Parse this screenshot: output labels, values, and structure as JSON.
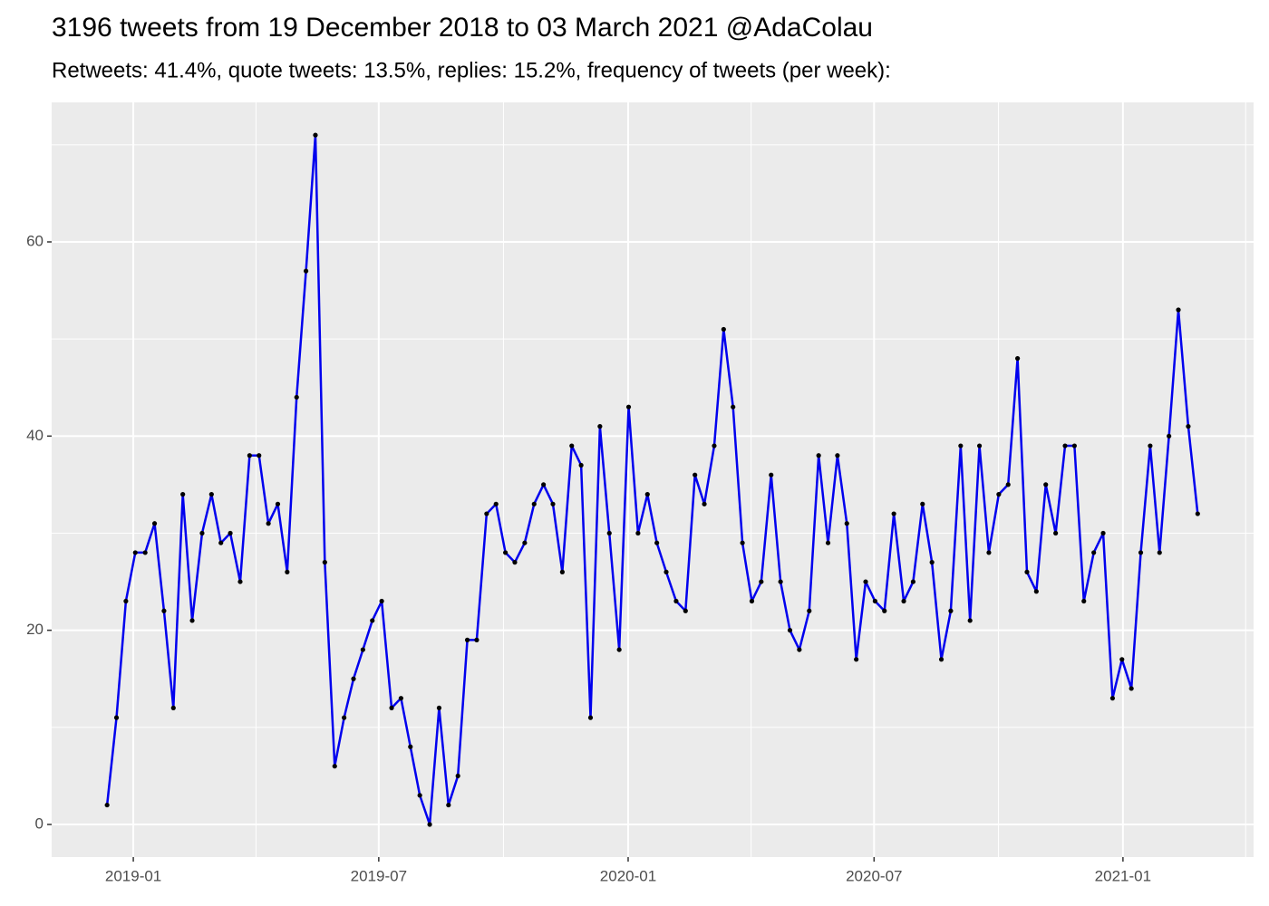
{
  "chart_data": {
    "type": "line",
    "title": "3196 tweets from 19 December 2018 to 03 March 2021 @AdaColau",
    "subtitle": "Retweets: 41.4%, quote tweets: 13.5%, replies: 15.2%, frequency of tweets (per week):",
    "x": [
      2018.947,
      2018.966,
      2018.985,
      2019.004,
      2019.024,
      2019.043,
      2019.062,
      2019.081,
      2019.1,
      2019.119,
      2019.139,
      2019.158,
      2019.177,
      2019.196,
      2019.216,
      2019.235,
      2019.254,
      2019.273,
      2019.292,
      2019.311,
      2019.33,
      2019.349,
      2019.368,
      2019.387,
      2019.407,
      2019.426,
      2019.445,
      2019.464,
      2019.483,
      2019.502,
      2019.522,
      2019.541,
      2019.56,
      2019.579,
      2019.599,
      2019.618,
      2019.637,
      2019.656,
      2019.675,
      2019.694,
      2019.714,
      2019.733,
      2019.752,
      2019.771,
      2019.791,
      2019.81,
      2019.829,
      2019.848,
      2019.867,
      2019.886,
      2019.905,
      2019.924,
      2019.943,
      2019.962,
      2019.982,
      2020.001,
      2020.02,
      2020.039,
      2020.058,
      2020.077,
      2020.097,
      2020.116,
      2020.135,
      2020.154,
      2020.174,
      2020.193,
      2020.212,
      2020.231,
      2020.25,
      2020.269,
      2020.289,
      2020.308,
      2020.327,
      2020.346,
      2020.366,
      2020.385,
      2020.404,
      2020.423,
      2020.442,
      2020.461,
      2020.48,
      2020.499,
      2020.518,
      2020.537,
      2020.557,
      2020.576,
      2020.595,
      2020.614,
      2020.633,
      2020.652,
      2020.672,
      2020.691,
      2020.71,
      2020.729,
      2020.749,
      2020.768,
      2020.787,
      2020.806,
      2020.825,
      2020.844,
      2020.864,
      2020.883,
      2020.902,
      2020.921,
      2020.941,
      2020.96,
      2020.979,
      2020.998,
      2021.017,
      2021.036,
      2021.055,
      2021.074,
      2021.093,
      2021.112,
      2021.132,
      2021.151
    ],
    "series": [
      {
        "color": "#0000ee",
        "point_color": "#000000",
        "values": [
          2,
          11,
          23,
          28,
          28,
          31,
          22,
          12,
          34,
          21,
          30,
          34,
          29,
          30,
          25,
          38,
          38,
          31,
          33,
          26,
          44,
          57,
          71,
          27,
          6,
          11,
          15,
          18,
          21,
          23,
          12,
          13,
          8,
          3,
          0,
          12,
          2,
          5,
          19,
          19,
          32,
          33,
          28,
          27,
          29,
          33,
          35,
          33,
          26,
          39,
          37,
          11,
          41,
          30,
          18,
          43,
          30,
          34,
          29,
          26,
          23,
          22,
          36,
          33,
          39,
          51,
          43,
          29,
          23,
          25,
          36,
          25,
          20,
          18,
          22,
          38,
          29,
          38,
          31,
          17,
          25,
          23,
          22,
          32,
          23,
          25,
          33,
          27,
          17,
          22,
          39,
          21,
          39,
          28,
          34,
          35,
          48,
          26,
          24,
          35,
          30,
          39,
          39,
          23,
          28,
          30,
          13,
          17,
          14,
          28,
          39,
          28,
          40,
          53,
          41,
          32
        ]
      }
    ],
    "xlim": [
      2018.835,
      2021.264
    ],
    "xticks": [
      {
        "value": 2019.0,
        "label": "2019-01"
      },
      {
        "value": 2019.496,
        "label": "2019-07"
      },
      {
        "value": 2020.0,
        "label": "2020-01"
      },
      {
        "value": 2020.497,
        "label": "2020-07"
      },
      {
        "value": 2021.0,
        "label": "2021-01"
      }
    ],
    "ylim": [
      -3.36,
      74.37
    ],
    "yticks": [
      0,
      20,
      40,
      60
    ],
    "grid": true
  }
}
